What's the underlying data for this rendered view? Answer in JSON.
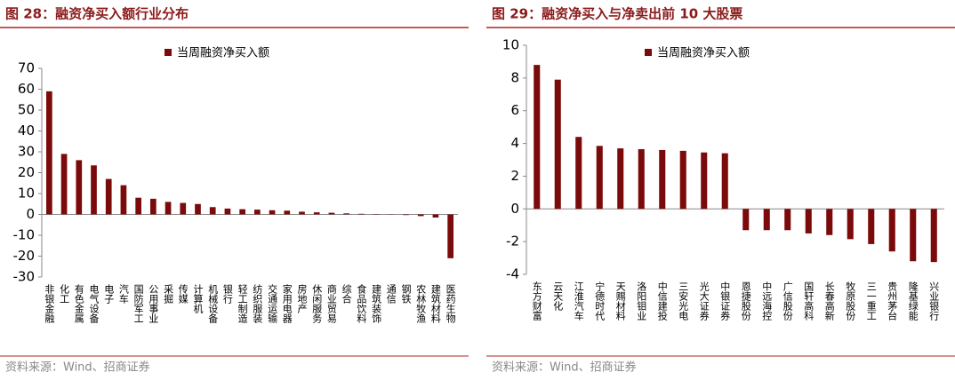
{
  "chart_data": [
    {
      "type": "bar",
      "title": "图 28：融资净买入额行业分布",
      "source": "资料来源：Wind、招商证券",
      "categories": [
        "非银金融",
        "化工",
        "有色金属",
        "电气设备",
        "电子",
        "汽车",
        "国防军工",
        "公用事业",
        "采掘",
        "传媒",
        "计算机",
        "机械设备",
        "银行",
        "轻工制造",
        "纺织服装",
        "交通运输",
        "家用电器",
        "房地产",
        "休闲服务",
        "商业贸易",
        "综合",
        "食品饮料",
        "建筑装饰",
        "通信",
        "钢铁",
        "农林牧渔",
        "建筑材料",
        "医药生物"
      ],
      "series": [
        {
          "name": "当周融资净买入额",
          "color": "#7b0a0a",
          "values": [
            59,
            29,
            26,
            23.5,
            17,
            14,
            8,
            7.5,
            6,
            5.5,
            5,
            3.5,
            2.8,
            2.5,
            2.3,
            2,
            1.8,
            1.3,
            1,
            0.8,
            0.5,
            0.3,
            0.2,
            0.1,
            -0.3,
            -0.8,
            -1.5,
            -21
          ]
        }
      ],
      "ylim": [
        -30,
        70
      ],
      "yticks": [
        -30,
        -20,
        -10,
        0,
        10,
        20,
        30,
        40,
        50,
        60,
        70
      ],
      "legend": "top"
    },
    {
      "type": "bar",
      "title": "图 29：融资净买入与净卖出前 10 大股票",
      "source": "资料来源：Wind、招商证券",
      "categories": [
        "东方财富",
        "云天化",
        "江淮汽车",
        "宁德时代",
        "天赐材料",
        "洛阳钼业",
        "中信建投",
        "三安光电",
        "光大证券",
        "中银证券",
        "恩捷股份",
        "中远海控",
        "广信股份",
        "国轩高科",
        "长春高新",
        "牧原股份",
        "三一重工",
        "贵州茅台",
        "隆基绿能",
        "兴业银行"
      ],
      "series": [
        {
          "name": "当周融资净买入额",
          "color": "#7b0a0a",
          "values": [
            8.8,
            7.9,
            4.4,
            3.85,
            3.7,
            3.65,
            3.6,
            3.55,
            3.45,
            3.4,
            -1.3,
            -1.3,
            -1.3,
            -1.5,
            -1.6,
            -1.85,
            -2.15,
            -2.6,
            -3.2,
            -3.25
          ]
        }
      ],
      "ylim": [
        -4,
        10
      ],
      "yticks": [
        -4,
        -2,
        0,
        2,
        4,
        6,
        8,
        10
      ],
      "legend": "top"
    }
  ]
}
